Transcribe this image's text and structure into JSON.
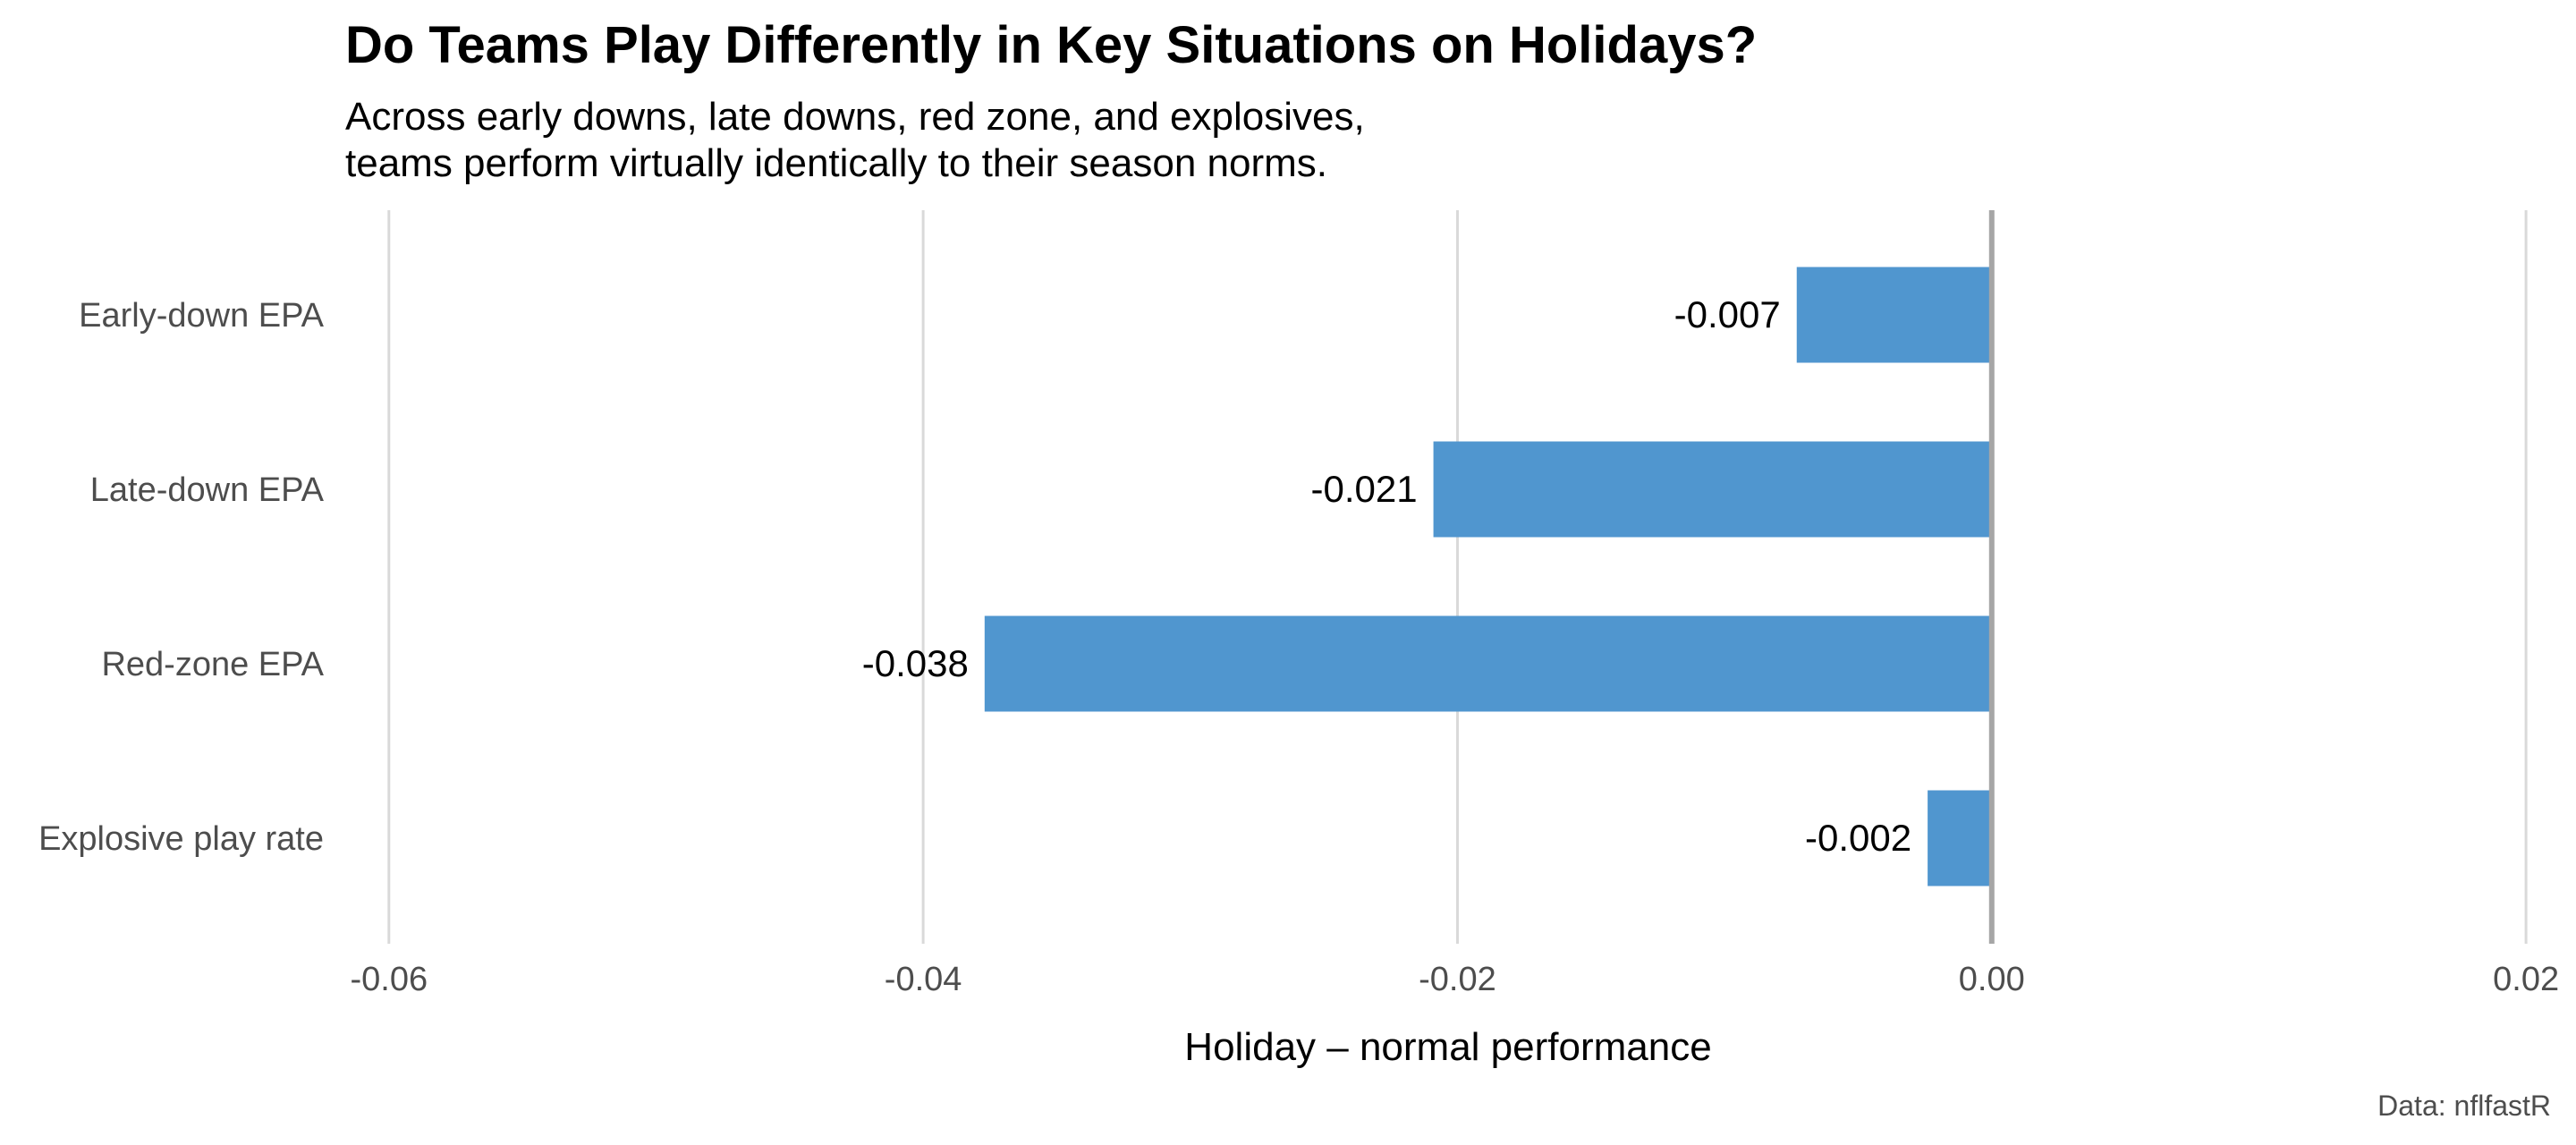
{
  "chart_data": {
    "type": "bar",
    "orientation": "horizontal",
    "title": "Do Teams Play Differently in Key Situations on Holidays?",
    "subtitle": [
      "Across early downs, late downs, red zone, and explosives,",
      "teams perform virtually identically to their season norms."
    ],
    "categories": [
      "Early-down EPA",
      "Late-down EPA",
      "Red-zone EPA",
      "Explosive play rate"
    ],
    "values": [
      -0.0073,
      -0.0209,
      -0.0377,
      -0.0024
    ],
    "data_labels": [
      "-0.007",
      "-0.021",
      "-0.038",
      "-0.002"
    ],
    "xlabel": "Holiday – normal performance",
    "ylabel": "",
    "xlim": [
      -0.0616,
      0.0209
    ],
    "x_ticks": [
      -0.06,
      -0.04,
      -0.02,
      0.0,
      0.02
    ],
    "x_tick_labels": [
      "-0.06",
      "-0.04",
      "-0.02",
      "0.00",
      "0.02"
    ],
    "grid": "vertical major",
    "reference_line": 0,
    "caption": "Data: nflfastR",
    "colors": {
      "bar": "#5096CF",
      "grid": "#d9d9d9",
      "reference_line": "#a6a6a6"
    }
  }
}
